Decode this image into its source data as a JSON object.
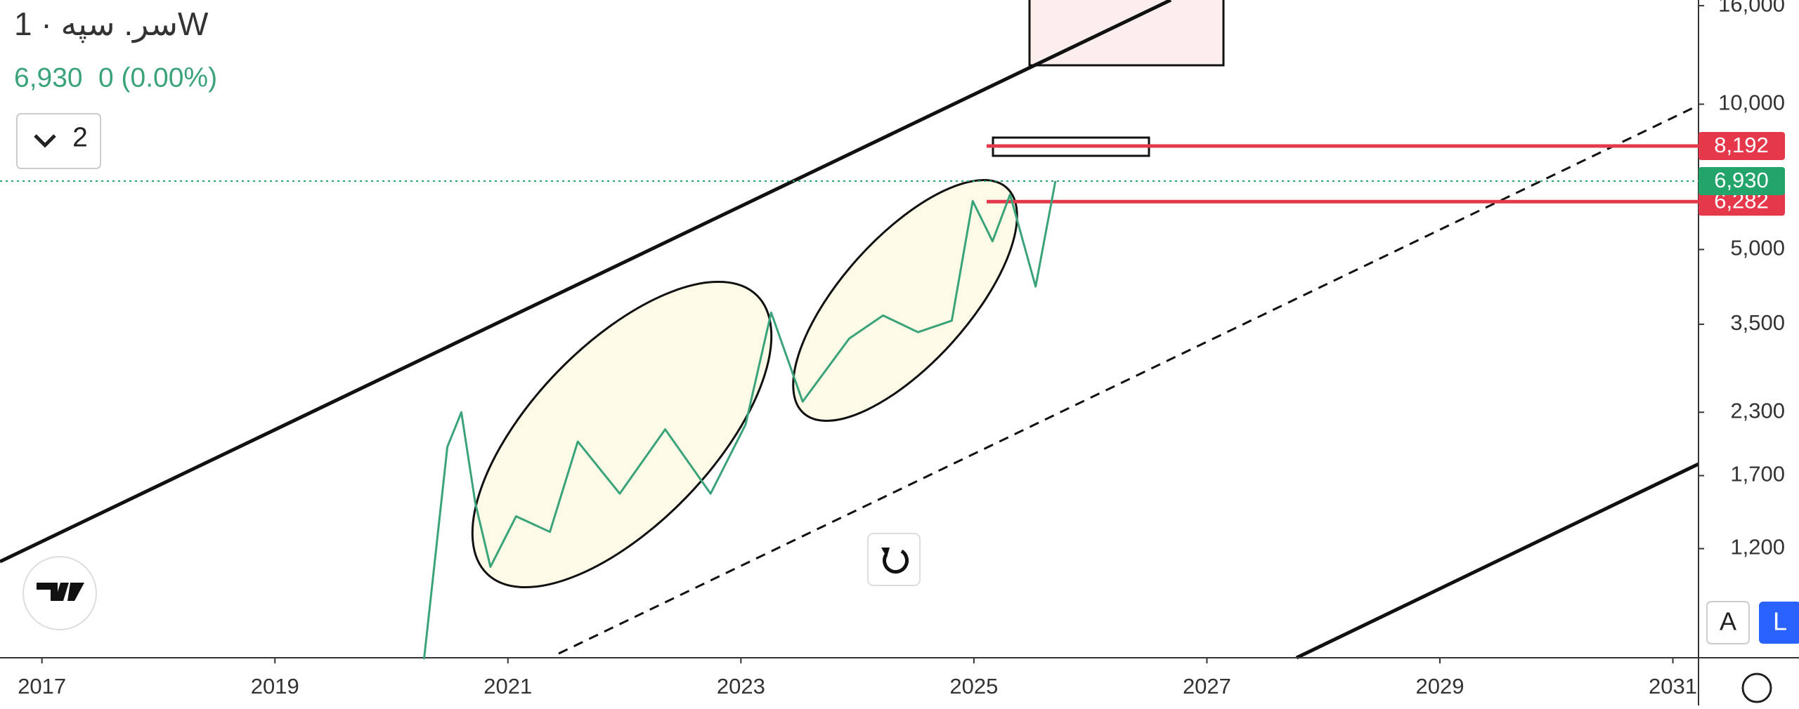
{
  "header": {
    "title": "سر. سپه · 1W",
    "change": "0 (0.00%)",
    "indicators": "2"
  },
  "chart_data": {
    "type": "line",
    "x": [
      2020.28,
      2020.48,
      2020.6,
      2020.72,
      2020.85,
      2021.07,
      2021.36,
      2021.6,
      2021.96,
      2022.35,
      2022.74,
      2023.04,
      2023.26,
      2023.53,
      2023.93,
      2024.22,
      2024.52,
      2024.81,
      2024.99,
      2025.16,
      2025.31,
      2025.53,
      2025.7
    ],
    "values": [
      708,
      1950,
      2300,
      1490,
      1100,
      1400,
      1300,
      2000,
      1560,
      2120,
      1560,
      2170,
      3700,
      2420,
      3270,
      3650,
      3370,
      3560,
      6300,
      5200,
      6500,
      4190,
      6930
    ],
    "color": "#3aa37a",
    "xlim": [
      2016.64,
      2031.22
    ],
    "xticks": [
      2017,
      2019,
      2021,
      2023,
      2025,
      2027,
      2029,
      2031
    ],
    "ylim": [
      713,
      16440
    ],
    "log_scale": true,
    "yticks": [
      {
        "value": 1200,
        "label": "1,200"
      },
      {
        "value": 1700,
        "label": "1,700"
      },
      {
        "value": 2300,
        "label": "2,300"
      },
      {
        "value": 3500,
        "label": "3,500"
      },
      {
        "value": 5000,
        "label": "5,000"
      },
      {
        "value": 10000,
        "label": "10,000"
      },
      {
        "value": 16000,
        "label": "16,000"
      }
    ],
    "levels": [
      {
        "value": 8192,
        "label": "8,192",
        "color": "#e5394b"
      },
      {
        "value": 6282,
        "label": "6,282",
        "color": "#e5394b"
      }
    ],
    "last_price": {
      "value": 6930,
      "label": "6,930",
      "color": "#23a46a"
    }
  },
  "scale_buttons": [
    "A",
    "L"
  ]
}
